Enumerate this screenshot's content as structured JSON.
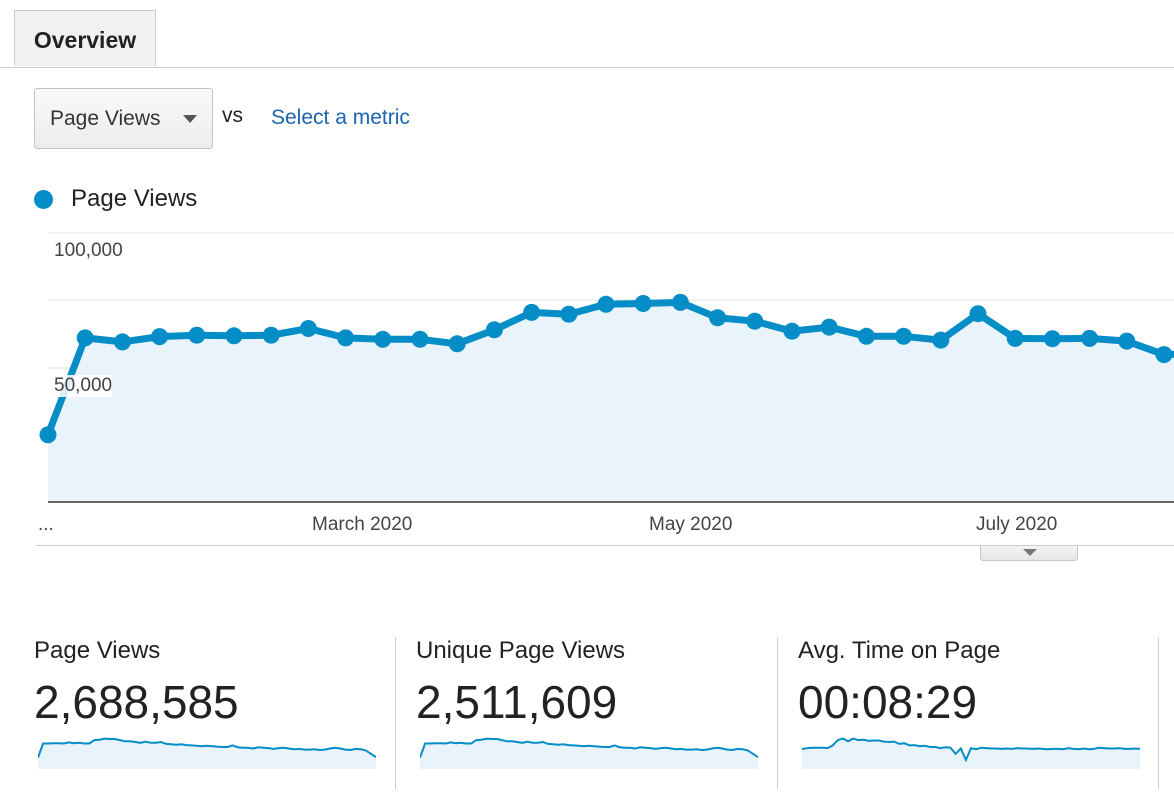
{
  "tabs": [
    {
      "label": "Overview"
    }
  ],
  "controls": {
    "metric_select": "Page Views",
    "vs_text": "vs",
    "select_metric_link": "Select a metric"
  },
  "legend": {
    "label": "Page Views"
  },
  "colors": {
    "series": "#058dc7",
    "fill": "#e8f3fb",
    "link": "#1a65b0"
  },
  "chart_data": {
    "type": "area",
    "title": "",
    "xlabel": "",
    "ylabel": "",
    "series": [
      {
        "name": "Page Views",
        "values": [
          25000,
          61000,
          59500,
          61500,
          62000,
          61800,
          62000,
          64500,
          61000,
          60500,
          60500,
          58800,
          64000,
          70500,
          69800,
          73500,
          73800,
          74200,
          68500,
          67200,
          63500,
          65000,
          61600,
          61600,
          60200,
          70000,
          60800,
          60700,
          60800,
          59800,
          54800,
          55300
        ]
      }
    ],
    "ylim": [
      0,
      100000
    ],
    "yticks": [
      {
        "value": 100000,
        "label": "100,000"
      },
      {
        "value": 50000,
        "label": "50,000"
      }
    ],
    "xticks": [
      "...",
      "March 2020",
      "May 2020",
      "July 2020"
    ],
    "grid": true
  },
  "summary": [
    {
      "title": "Page Views",
      "value": "2,688,585",
      "spark": [
        30,
        67,
        67,
        68,
        68,
        67,
        70,
        68,
        69,
        67,
        67,
        76,
        77,
        80,
        79,
        79,
        76,
        73,
        73,
        71,
        69,
        72,
        69,
        69,
        71,
        66,
        65,
        64,
        65,
        63,
        62,
        61,
        60,
        61,
        60,
        59,
        58,
        58,
        62,
        57,
        56,
        56,
        54,
        57,
        56,
        55,
        53,
        55,
        56,
        54,
        52,
        53,
        51,
        51,
        52,
        50,
        51,
        54,
        56,
        54,
        51,
        50,
        53,
        52,
        49,
        40,
        31
      ]
    },
    {
      "title": "Unique Page Views",
      "value": "2,511,609",
      "spark": [
        30,
        67,
        67,
        68,
        68,
        67,
        70,
        68,
        69,
        67,
        67,
        76,
        77,
        80,
        79,
        79,
        76,
        73,
        73,
        71,
        69,
        72,
        69,
        69,
        71,
        66,
        65,
        64,
        65,
        63,
        62,
        61,
        60,
        61,
        60,
        59,
        58,
        58,
        62,
        57,
        56,
        56,
        54,
        57,
        56,
        55,
        53,
        55,
        56,
        54,
        52,
        53,
        51,
        51,
        52,
        50,
        51,
        54,
        56,
        54,
        51,
        50,
        53,
        52,
        49,
        40,
        31
      ]
    },
    {
      "title": "Avg. Time on Page",
      "value": "00:08:29",
      "spark": [
        52,
        55,
        56,
        56,
        56,
        55,
        62,
        76,
        80,
        73,
        80,
        76,
        77,
        74,
        75,
        75,
        72,
        71,
        72,
        66,
        68,
        62,
        63,
        60,
        61,
        58,
        58,
        55,
        57,
        56,
        40,
        54,
        24,
        55,
        52,
        56,
        55,
        54,
        54,
        53,
        54,
        53,
        55,
        54,
        54,
        53,
        54,
        53,
        52,
        53,
        53,
        52,
        55,
        53,
        52,
        54,
        52,
        53,
        56,
        55,
        54,
        54,
        55,
        53,
        53,
        54,
        53
      ]
    }
  ]
}
